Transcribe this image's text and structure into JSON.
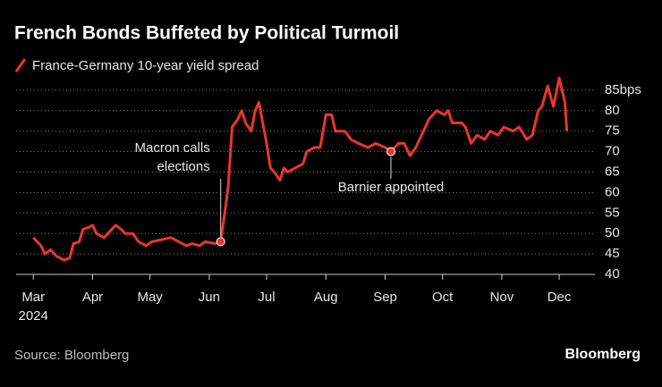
{
  "chart_data": {
    "type": "line",
    "title": "French Bonds Buffeted by Political Turmoil",
    "source": "Source: Bloomberg",
    "brand": "Bloomberg",
    "x_sublabel": "2024",
    "x": [
      0,
      4,
      6,
      9,
      12,
      14,
      16,
      19,
      21,
      24,
      26,
      29,
      31,
      33,
      37,
      39,
      43,
      46,
      48,
      52,
      55,
      59,
      62,
      67,
      72,
      76,
      80,
      83,
      87,
      90,
      95,
      98,
      101,
      102,
      104,
      107,
      109,
      111,
      114,
      116,
      118,
      120,
      122,
      124,
      126,
      129,
      131,
      133,
      137,
      141,
      143,
      147,
      150,
      153,
      156,
      158,
      163,
      166,
      170,
      175,
      179,
      184,
      187,
      191,
      194,
      197,
      200,
      204,
      207,
      211,
      215,
      217,
      219,
      224,
      226,
      229,
      232,
      236,
      239,
      243,
      246,
      251,
      254,
      258,
      261,
      264,
      266,
      269,
      272,
      275,
      278,
      279
    ],
    "series": [
      {
        "name": "France-Germany 10-year yield spread",
        "color": "#e8372c",
        "values": [
          49,
          47,
          45,
          46,
          44.5,
          44,
          43.5,
          44,
          47.5,
          48,
          51,
          51.5,
          52,
          50,
          49,
          50,
          52,
          51,
          50,
          50,
          48,
          47,
          48,
          48.5,
          49,
          48,
          47,
          47.5,
          47,
          48,
          47.5,
          48,
          58,
          62,
          76,
          78,
          80,
          77,
          75,
          80,
          82,
          77,
          72,
          66,
          65,
          63,
          66,
          65,
          66,
          67,
          70,
          71,
          71,
          79,
          79,
          75,
          75,
          73,
          72,
          71,
          72,
          71,
          70,
          72,
          72,
          69,
          71,
          75,
          78,
          80,
          79,
          80,
          77,
          77,
          76,
          72,
          74,
          73,
          75,
          74,
          76,
          75,
          76,
          73,
          74,
          80,
          81,
          86,
          81,
          88,
          82,
          75
        ]
      }
    ],
    "xlim": [
      -9,
      289
    ],
    "xticks": [
      {
        "value": 0,
        "label": "Mar"
      },
      {
        "value": 31,
        "label": "Apr"
      },
      {
        "value": 61,
        "label": "May"
      },
      {
        "value": 92,
        "label": "Jun"
      },
      {
        "value": 122,
        "label": "Jul"
      },
      {
        "value": 153,
        "label": "Aug"
      },
      {
        "value": 184,
        "label": "Sep"
      },
      {
        "value": 214,
        "label": "Oct"
      },
      {
        "value": 245,
        "label": "Nov"
      },
      {
        "value": 275,
        "label": "Dec"
      }
    ],
    "ylim": [
      40,
      90
    ],
    "yticks": [
      40,
      45,
      50,
      55,
      60,
      65,
      70,
      75,
      80,
      {
        "value": 85,
        "label": "85bps"
      }
    ],
    "grid": true,
    "annotations": [
      {
        "text": [
          "Macron calls",
          "elections"
        ],
        "x": 98,
        "y": 48
      },
      {
        "text": [
          "Barnier appointed"
        ],
        "x": 187,
        "y": 70
      }
    ]
  }
}
